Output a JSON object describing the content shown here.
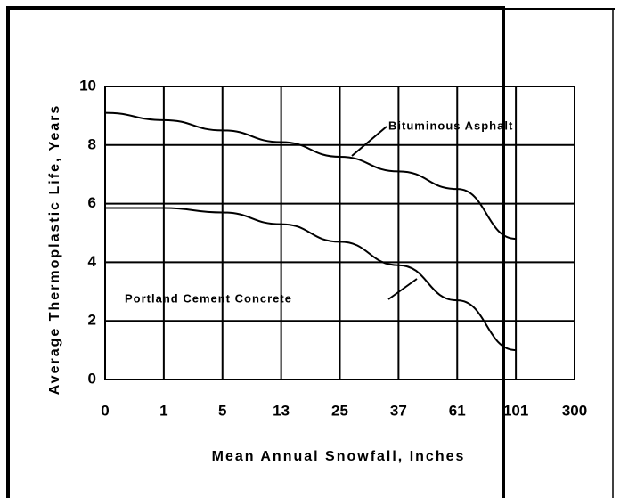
{
  "chart_data": {
    "type": "line",
    "xlabel": "Mean Annual Snowfall, Inches",
    "ylabel": "Average Thermoplastic Life, Years",
    "categories": [
      "0",
      "1",
      "5",
      "13",
      "25",
      "37",
      "61",
      "101",
      "300"
    ],
    "series": [
      {
        "name": "Bituminous Asphalt",
        "color": "#000000",
        "values": [
          9.1,
          8.85,
          8.5,
          8.1,
          7.6,
          7.1,
          6.5,
          4.8,
          null
        ]
      },
      {
        "name": "Portland Cement Concrete",
        "color": "#000000",
        "values": [
          5.85,
          5.85,
          5.7,
          5.3,
          4.7,
          3.9,
          2.7,
          1.0,
          null
        ]
      }
    ],
    "ylim": [
      0,
      10
    ],
    "yticks": [
      0,
      2,
      4,
      6,
      8,
      10
    ],
    "grid": true
  }
}
